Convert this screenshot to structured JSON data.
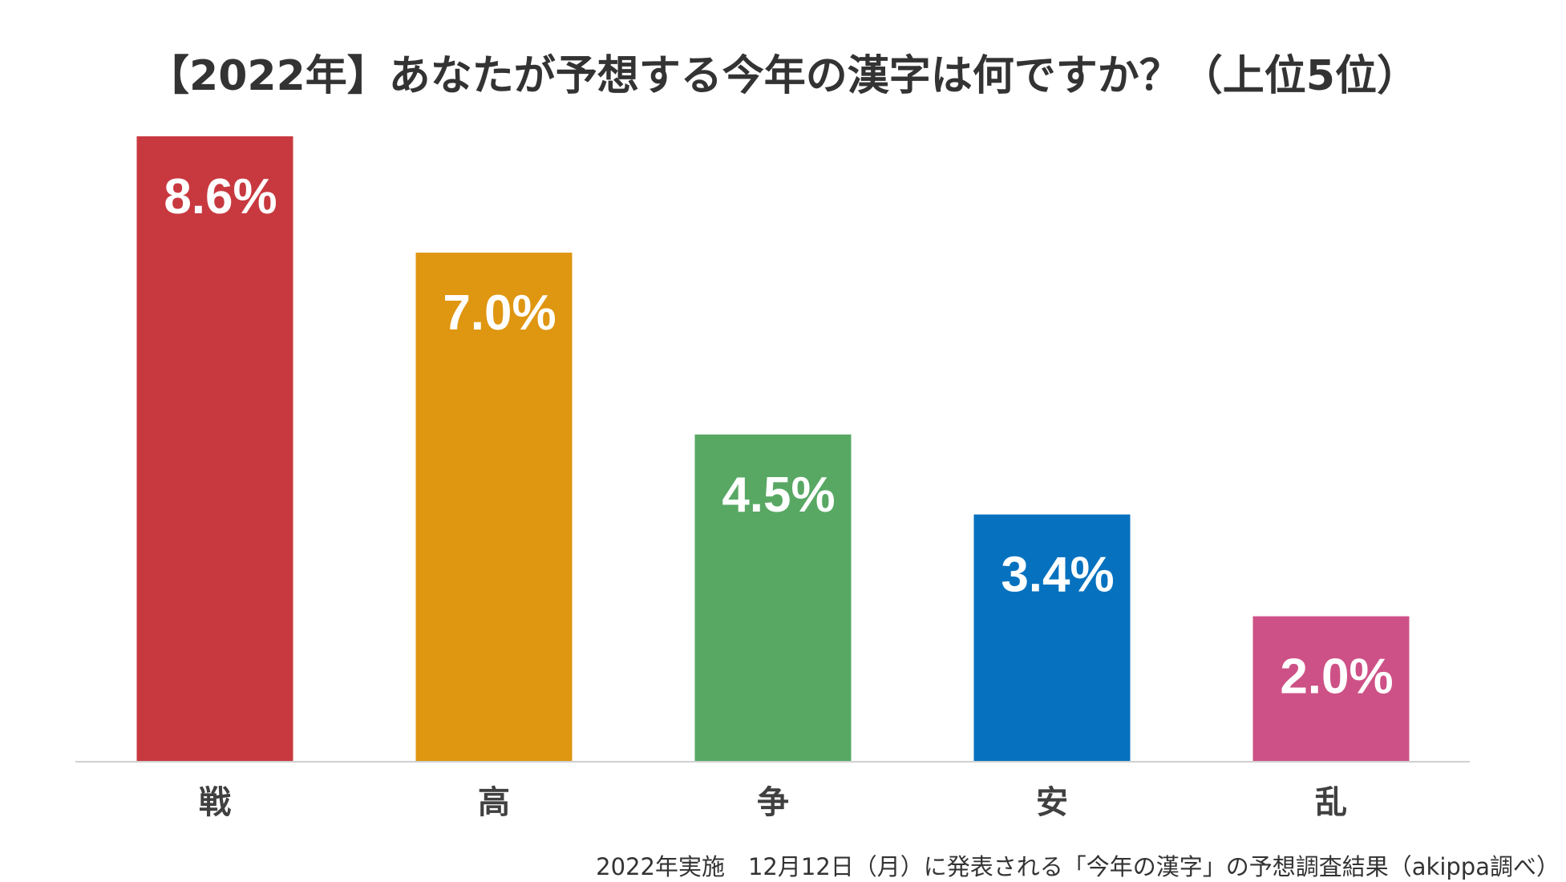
{
  "chart_data": {
    "type": "bar",
    "title": "【2022年】あなたが予想する今年の漢字は何ですか？（上位5位）",
    "categories": [
      "戦",
      "高",
      "争",
      "安",
      "乱"
    ],
    "values": [
      8.6,
      7.0,
      4.5,
      3.4,
      2.0
    ],
    "value_labels": [
      "8.6%",
      "7.0%",
      "4.5%",
      "3.4%",
      "2.0%"
    ],
    "colors": [
      "#c8393f",
      "#df9611",
      "#58a864",
      "#0672bf",
      "#cd5186"
    ],
    "unit": "%",
    "ylim": [
      0,
      8.6
    ],
    "xlabel": "",
    "ylabel": "",
    "grid": false,
    "legend": "none",
    "axis_color": "#d0d0d0",
    "label_color": "#ffffff"
  },
  "footnote": "2022年実施　12月12日（月）に発表される「今年の漢字」の予想調査結果（akippa調べ）"
}
